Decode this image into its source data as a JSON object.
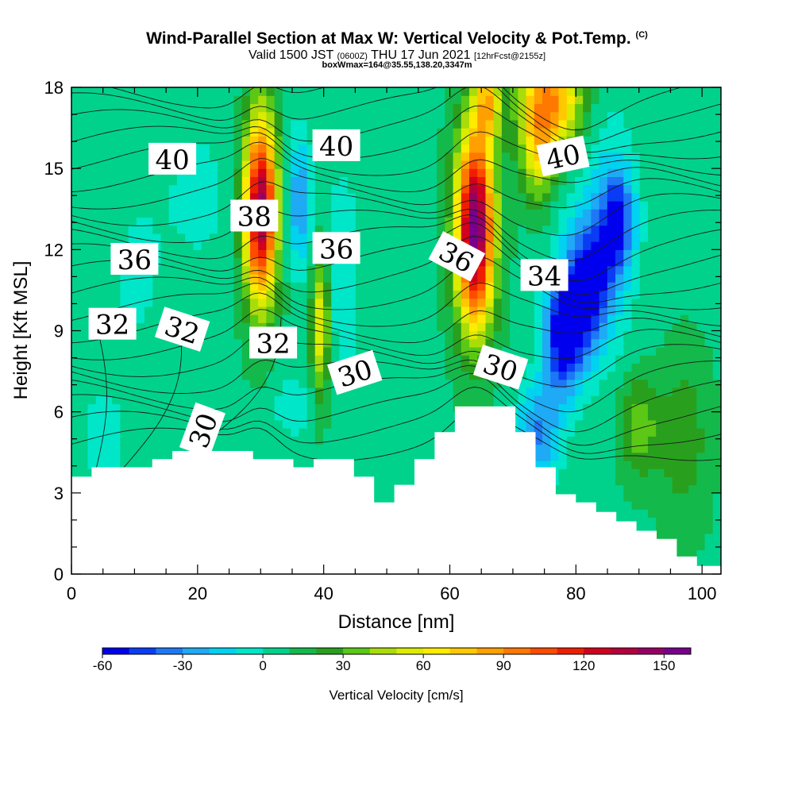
{
  "header": {
    "title": "Wind-Parallel Section at Max W: Vertical Velocity & Pot.Temp.",
    "copyright": "(C)",
    "valid_prefix": "Valid 1500 JST",
    "valid_utc": "(0600Z)",
    "valid_date": "THU 17 Jun 2021",
    "forecast": "[12hrFcst@2155z]",
    "box_info": "boxWmax=164@35.55,138.20,3347m"
  },
  "chart_data": {
    "type": "heatmap",
    "xlabel": "Distance [nm]",
    "ylabel": "Height [Kft MSL]",
    "xlim": [
      0,
      103
    ],
    "ylim": [
      0,
      18
    ],
    "x_ticks": [
      0,
      20,
      40,
      60,
      80,
      100
    ],
    "y_ticks": [
      0,
      3,
      6,
      9,
      12,
      15,
      18
    ],
    "colorbar": {
      "label": "Vertical Velocity [cm/s]",
      "min": -60,
      "max": 160,
      "step": 10,
      "ticks": [
        -60,
        -30,
        0,
        30,
        60,
        90,
        120,
        150
      ],
      "colors": [
        "#0000ee",
        "#0a3cf5",
        "#1e78f5",
        "#1eaaf5",
        "#00d2f0",
        "#00e6c8",
        "#00d28c",
        "#14b94b",
        "#28a01e",
        "#5ac814",
        "#aadc0a",
        "#dceb00",
        "#ffeb00",
        "#ffc800",
        "#ffa000",
        "#ff7800",
        "#ff4b00",
        "#f01e00",
        "#d2001e",
        "#b4003c",
        "#960064",
        "#78008c"
      ]
    },
    "vertical_velocity_features": [
      {
        "x": 30,
        "y": 13.5,
        "peak": 145,
        "desc": "updraft"
      },
      {
        "x": 39.5,
        "y": 9.5,
        "peak": 60,
        "desc": "updraft"
      },
      {
        "x": 64,
        "y": 12.8,
        "peak": 160,
        "desc": "updraft (max W)"
      },
      {
        "x": 77,
        "y": 17.5,
        "peak": 95,
        "desc": "updraft aloft"
      },
      {
        "x": 36,
        "y": 13.8,
        "peak": -35,
        "desc": "downdraft"
      },
      {
        "x": 78,
        "y": 8.8,
        "peak": -60,
        "desc": "downdraft"
      },
      {
        "x": 82,
        "y": 10.5,
        "peak": -55,
        "desc": "downdraft"
      },
      {
        "x": 87,
        "y": 13,
        "peak": -50,
        "desc": "downdraft"
      },
      {
        "x": 90,
        "y": 5.5,
        "peak": 40,
        "desc": "weak updraft"
      }
    ],
    "potential_temperature": {
      "units": "C",
      "contour_interval": 1,
      "contour_labels": [
        {
          "text": "40",
          "x": 16,
          "y": 15.3
        },
        {
          "text": "40",
          "x": 42,
          "y": 15.8
        },
        {
          "text": "40",
          "x": 78,
          "y": 15.4
        },
        {
          "text": "38",
          "x": 29,
          "y": 13.2
        },
        {
          "text": "36",
          "x": 10,
          "y": 11.6
        },
        {
          "text": "36",
          "x": 42,
          "y": 12.0
        },
        {
          "text": "36",
          "x": 61,
          "y": 11.7
        },
        {
          "text": "34",
          "x": 75,
          "y": 11.0
        },
        {
          "text": "32",
          "x": 6.5,
          "y": 9.2
        },
        {
          "text": "32",
          "x": 17.5,
          "y": 9.0
        },
        {
          "text": "32",
          "x": 32,
          "y": 8.5
        },
        {
          "text": "30",
          "x": 45,
          "y": 7.4
        },
        {
          "text": "30",
          "x": 68,
          "y": 7.6
        },
        {
          "text": "30",
          "x": 21,
          "y": 5.3
        }
      ]
    },
    "terrain": {
      "x": [
        0,
        3.2,
        6.4,
        9.6,
        12.8,
        16,
        19.2,
        22.4,
        25.6,
        28.8,
        32,
        35.2,
        38.4,
        41.6,
        44.8,
        48,
        51.2,
        54.4,
        57.6,
        60.8,
        64,
        67.2,
        70.4,
        73.6,
        76.8,
        80,
        83.2,
        86.4,
        89.6,
        92.8,
        96,
        99.2
      ],
      "y": [
        3.6,
        3.95,
        3.95,
        3.95,
        4.25,
        4.55,
        4.55,
        4.55,
        4.55,
        4.25,
        4.25,
        3.95,
        4.25,
        4.25,
        3.6,
        2.65,
        3.3,
        4.25,
        5.25,
        6.2,
        6.2,
        6.2,
        5.25,
        3.95,
        2.95,
        2.65,
        2.3,
        1.95,
        1.6,
        1.3,
        0.65,
        0.3
      ]
    }
  }
}
